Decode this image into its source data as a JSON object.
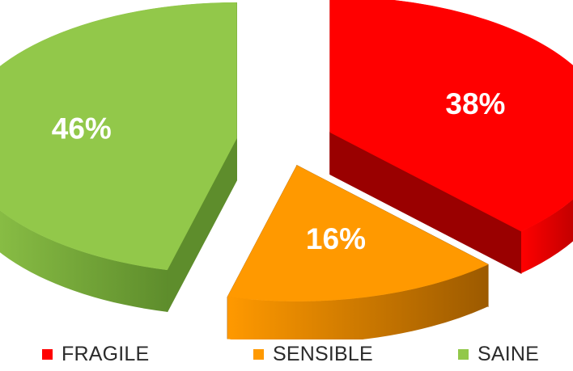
{
  "chart_data": {
    "type": "pie",
    "style": "3d-exploded",
    "categories": [
      "FRAGILE",
      "SENSIBLE",
      "SAINE"
    ],
    "values": [
      38,
      16,
      46
    ],
    "labels": [
      "38%",
      "16%",
      "46%"
    ],
    "colors": [
      "#ff0000",
      "#ff9900",
      "#92c84a"
    ],
    "side_colors": [
      "#9a0000",
      "#9c5a00",
      "#5e8d2c"
    ],
    "legend_position": "bottom"
  }
}
